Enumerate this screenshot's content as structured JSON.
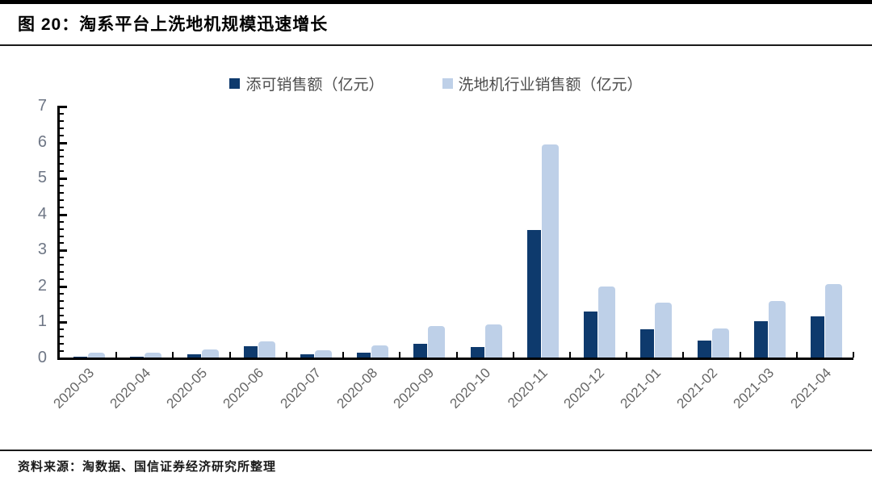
{
  "figure": {
    "title": "图 20：淘系平台上洗地机规模迅速增长",
    "source": "资料来源：淘数据、国信证券经济研究所整理"
  },
  "colors": {
    "tianke_bar": "#0e3a6d",
    "industry_bar": "#bed0e8",
    "axis": "#000000",
    "y_tick_label": "#6e7685",
    "x_tick_label": "#666666"
  },
  "chart_data": {
    "type": "bar",
    "title": "淘系平台上洗地机规模迅速增长",
    "categories": [
      "2020-03",
      "2020-04",
      "2020-05",
      "2020-06",
      "2020-07",
      "2020-08",
      "2020-09",
      "2020-10",
      "2020-11",
      "2020-12",
      "2021-01",
      "2021-02",
      "2021-03",
      "2021-04"
    ],
    "series": [
      {
        "name": "添可销售额（亿元）",
        "color": "#0e3a6d",
        "values": [
          0.03,
          0.03,
          0.1,
          0.31,
          0.09,
          0.14,
          0.38,
          0.3,
          3.55,
          1.29,
          0.78,
          0.47,
          1.02,
          1.14
        ]
      },
      {
        "name": "洗地机行业销售额（亿元）",
        "color": "#bed0e8",
        "values": [
          0.14,
          0.13,
          0.23,
          0.46,
          0.2,
          0.33,
          0.88,
          0.92,
          5.92,
          1.97,
          1.52,
          0.82,
          1.58,
          2.05
        ]
      }
    ],
    "xlabel": "",
    "ylabel": "",
    "ylim": [
      0,
      7
    ],
    "y_major_ticks": [
      0,
      1,
      2,
      3,
      4,
      5,
      6,
      7
    ],
    "y_minor_tick_step": 0.2,
    "grid": false,
    "legend_position": "top-center",
    "x_label_rotation_deg": -45
  }
}
